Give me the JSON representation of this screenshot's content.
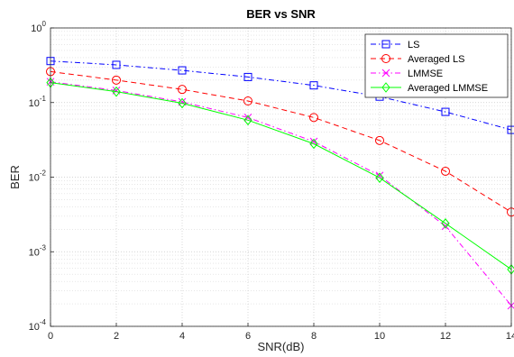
{
  "chart_data": {
    "type": "line",
    "title": "BER vs SNR",
    "xlabel": "SNR(dB)",
    "ylabel": "BER",
    "x": [
      0,
      2,
      4,
      6,
      8,
      10,
      12,
      14
    ],
    "xlim": [
      0,
      14
    ],
    "ylim": [
      0.0001,
      1
    ],
    "yscale": "log",
    "x_ticks": [
      "0",
      "2",
      "4",
      "6",
      "8",
      "10",
      "12",
      "14"
    ],
    "y_ticks": [
      {
        "value": 1,
        "exp": "0"
      },
      {
        "value": 0.1,
        "exp": "-1"
      },
      {
        "value": 0.01,
        "exp": "-2"
      },
      {
        "value": 0.001,
        "exp": "-3"
      },
      {
        "value": 0.0001,
        "exp": "-4"
      }
    ],
    "y_tick_base": "10",
    "grid": true,
    "legend_position": "top-right",
    "series": [
      {
        "name": "LS",
        "color": "#0000ff",
        "dash": "6,3,1.5,3",
        "marker": "square",
        "values": [
          0.36,
          0.32,
          0.27,
          0.22,
          0.17,
          0.12,
          0.075,
          0.043
        ]
      },
      {
        "name": "Averaged LS",
        "color": "#ff0000",
        "dash": "6,4",
        "marker": "circle",
        "values": [
          0.26,
          0.2,
          0.15,
          0.105,
          0.063,
          0.031,
          0.012,
          0.0034
        ]
      },
      {
        "name": "LMMSE",
        "color": "#ff00ff",
        "dash": "6,3,1.5,3",
        "marker": "x",
        "values": [
          0.19,
          0.145,
          0.102,
          0.063,
          0.03,
          0.0105,
          0.0022,
          0.00019
        ]
      },
      {
        "name": "Averaged LMMSE",
        "color": "#00ff00",
        "dash": "",
        "marker": "diamond",
        "values": [
          0.185,
          0.14,
          0.098,
          0.058,
          0.028,
          0.0098,
          0.0024,
          0.00058
        ]
      }
    ]
  }
}
